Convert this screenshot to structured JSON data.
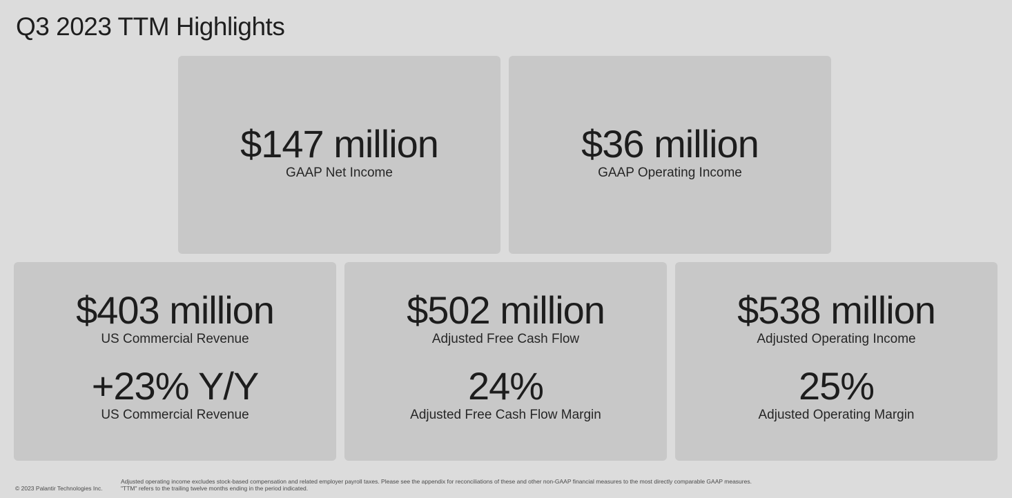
{
  "title": "Q3 2023 TTM Highlights",
  "top_row": [
    {
      "value": "$147 million",
      "label": "GAAP Net Income"
    },
    {
      "value": "$36 million",
      "label": "GAAP Operating Income"
    }
  ],
  "bottom_row": [
    {
      "primary": {
        "value": "$403 million",
        "label": "US Commercial Revenue"
      },
      "secondary": {
        "value": "+23% Y/Y",
        "label": "US Commercial Revenue"
      }
    },
    {
      "primary": {
        "value": "$502 million",
        "label": "Adjusted Free Cash Flow"
      },
      "secondary": {
        "value": "24%",
        "label": "Adjusted Free Cash Flow Margin"
      }
    },
    {
      "primary": {
        "value": "$538 million",
        "label": "Adjusted Operating Income"
      },
      "secondary": {
        "value": "25%",
        "label": "Adjusted Operating Margin"
      }
    }
  ],
  "footer": {
    "copyright": "© 2023 Palantir Technologies Inc.",
    "note_1": "Adjusted operating income excludes stock-based compensation and related employer payroll taxes. Please see the appendix for reconciliations of these and other non-GAAP financial measures to the most directly comparable GAAP measures.",
    "note_2": "\"TTM\" refers to the trailing twelve months ending in the period indicated."
  },
  "colors": {
    "background": "#dcdcdc",
    "card": "#c8c8c8",
    "text": "#1d1d1d"
  }
}
